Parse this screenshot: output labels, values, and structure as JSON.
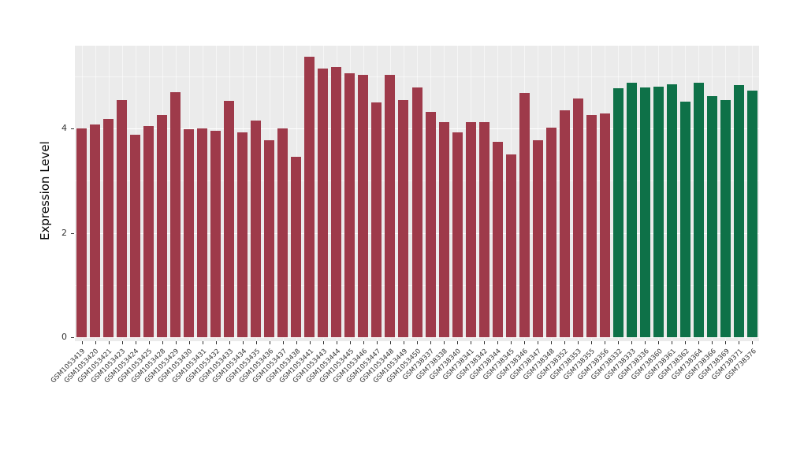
{
  "chart_data": {
    "type": "bar",
    "title": "",
    "xlabel": "",
    "ylabel": "Expression Level",
    "ylim": [
      0,
      5.6
    ],
    "yticks": [
      0,
      2,
      4
    ],
    "legend": "none",
    "panel_bg": "#EBEBEB",
    "grid": "white major/minor horizontal lines and vertical category lines on gray panel",
    "groups": [
      {
        "name": "group-1",
        "color": "#9E3A4A",
        "count": 40
      },
      {
        "name": "group-2",
        "color": "#0E7148",
        "count": 11
      }
    ],
    "categories": [
      "GSM1053419",
      "GSM1053420",
      "GSM1053421",
      "GSM1053423",
      "GSM1053424",
      "GSM1053425",
      "GSM1053428",
      "GSM1053429",
      "GSM1053430",
      "GSM1053431",
      "GSM1053432",
      "GSM1053433",
      "GSM1053434",
      "GSM1053435",
      "GSM1053436",
      "GSM1053437",
      "GSM1053438",
      "GSM1053441",
      "GSM1053443",
      "GSM1053444",
      "GSM1053445",
      "GSM1053446",
      "GSM1053447",
      "GSM1053448",
      "GSM1053449",
      "GSM1053450",
      "GSM738337",
      "GSM738338",
      "GSM738340",
      "GSM738341",
      "GSM738342",
      "GSM738344",
      "GSM738345",
      "GSM738346",
      "GSM738347",
      "GSM738348",
      "GSM738352",
      "GSM738353",
      "GSM738355",
      "GSM738356",
      "GSM738332",
      "GSM738333",
      "GSM738336",
      "GSM738360",
      "GSM738361",
      "GSM738362",
      "GSM738364",
      "GSM738366",
      "GSM738369",
      "GSM738371",
      "GSM738376"
    ],
    "values": [
      4.0,
      4.08,
      4.18,
      4.55,
      3.88,
      4.05,
      4.25,
      4.7,
      3.98,
      4.0,
      3.95,
      4.53,
      3.92,
      4.15,
      3.78,
      4.0,
      3.45,
      5.37,
      5.15,
      5.18,
      5.05,
      5.02,
      4.5,
      5.02,
      4.55,
      4.78,
      4.32,
      4.12,
      3.93,
      4.12,
      4.12,
      3.75,
      3.5,
      4.68,
      3.78,
      4.02,
      4.35,
      4.57,
      4.25,
      4.28,
      4.77,
      4.88,
      4.78,
      4.8,
      4.85,
      4.52,
      4.88,
      4.62,
      4.55,
      4.83,
      4.73
    ]
  }
}
